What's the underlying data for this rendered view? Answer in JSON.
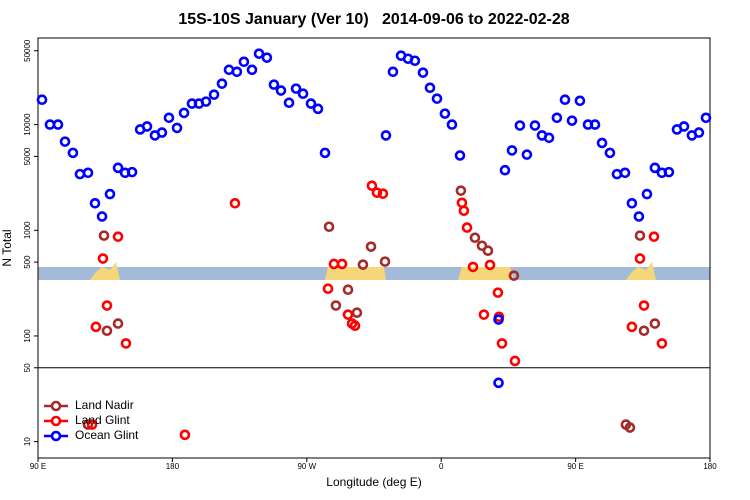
{
  "chart_data": {
    "type": "scatter",
    "title": "15S-10S January (Ver 10)   2014-09-06 to 2022-02-28",
    "x_label": "Longitude (deg E)",
    "y_label": "N Total",
    "xlim": [
      90,
      540
    ],
    "ylim": [
      7,
      66000
    ],
    "y_log": true,
    "legend": "bottomleft",
    "reference_line": 50,
    "xticks": [
      {
        "value": 90,
        "label": "90 E"
      },
      180,
      {
        "value": 270,
        "label": "90 W"
      },
      {
        "value": 360,
        "label": "0"
      },
      {
        "value": 450,
        "label": "90 E"
      },
      {
        "value": 540,
        "label": "180"
      }
    ],
    "yticks": [
      10,
      50,
      100,
      500,
      1000,
      5000,
      10000,
      50000
    ],
    "series": [
      {
        "name": "Land Nadir",
        "color": "#a52a2a",
        "x": [
          123.5,
          134.2,
          136.2,
          143.6,
          284.9,
          289.5,
          297.6,
          303.6,
          307.6,
          313,
          322.4,
          373.2,
          382.6,
          387.3,
          391.3,
          408.7,
          483.7,
          486.4,
          493.1,
          495.8,
          503.1
        ],
        "values": [
          14.5,
          890,
          112,
          131,
          1080,
          194,
          274,
          166,
          473,
          700,
          505,
          2370,
          850,
          714,
          641,
          372,
          14.5,
          13.6,
          890,
          112,
          131
        ]
      },
      {
        "name": "Land Glint",
        "color": "#ff0000",
        "x": [
          126.2,
          128.8,
          133.5,
          136.2,
          143.6,
          148.9,
          188.4,
          221.9,
          284.2,
          288.2,
          293.6,
          297.6,
          300.3,
          302.3,
          313.6,
          317,
          321,
          373.9,
          375.2,
          377.3,
          381.3,
          388.6,
          392.7,
          398,
          398.7,
          400.7,
          409.4,
          487.7,
          493.1,
          495.8,
          502.5,
          507.8
        ],
        "values": [
          14.5,
          122,
          540,
          194,
          870,
          85,
          11.6,
          1800,
          280,
          480,
          480,
          159,
          131,
          125,
          2640,
          2270,
          2220,
          1820,
          1530,
          1060,
          450,
          159,
          470,
          257,
          152,
          85,
          58,
          122,
          540,
          194,
          870,
          85
        ]
      },
      {
        "name": "Ocean Glint",
        "color": "#0000ff",
        "x": [
          92.7,
          98,
          103.4,
          108.1,
          113.4,
          118.1,
          123.5,
          128.2,
          132.9,
          138.2,
          143.6,
          148.3,
          153,
          158.4,
          163,
          168.3,
          173,
          177.7,
          183.1,
          187.8,
          193.1,
          197.8,
          202.5,
          207.9,
          213.2,
          217.9,
          223.2,
          227.9,
          233.3,
          238,
          243.3,
          248,
          252.7,
          258.1,
          262.8,
          267.5,
          272.8,
          277.5,
          282.2,
          323,
          327.7,
          333.1,
          337.8,
          342.4,
          347.8,
          352.5,
          357.2,
          362.5,
          367.2,
          372.6,
          398.4,
          398.4,
          402.7,
          407.4,
          412.7,
          417.4,
          422.8,
          427.5,
          432.2,
          437.5,
          442.9,
          447.6,
          452.9,
          458.3,
          463,
          467.7,
          473,
          477.7,
          483.1,
          487.7,
          492.4,
          497.8,
          503.1,
          507.8,
          512.5,
          517.9,
          522.6,
          527.9,
          532.6,
          537.3
        ],
        "values": [
          17200,
          10000,
          10000,
          6900,
          5400,
          3400,
          3500,
          1800,
          1350,
          2200,
          3900,
          3500,
          3550,
          9000,
          9600,
          7900,
          8400,
          11600,
          9300,
          12900,
          15800,
          15800,
          16500,
          19200,
          24400,
          33000,
          31600,
          39300,
          33000,
          46900,
          43000,
          23900,
          21000,
          16100,
          21900,
          19600,
          15800,
          14100,
          5400,
          7900,
          31600,
          44900,
          42000,
          40200,
          31000,
          22300,
          17600,
          12700,
          10000,
          5100,
          143,
          36,
          3700,
          5700,
          9800,
          5200,
          9800,
          7900,
          7500,
          11600,
          17200,
          10900,
          16800,
          10000,
          10000,
          6700,
          5400,
          3400,
          3500,
          1800,
          1350,
          2200,
          3900,
          3500,
          3550,
          9000,
          9600,
          7900,
          8400,
          11600
        ]
      }
    ]
  }
}
